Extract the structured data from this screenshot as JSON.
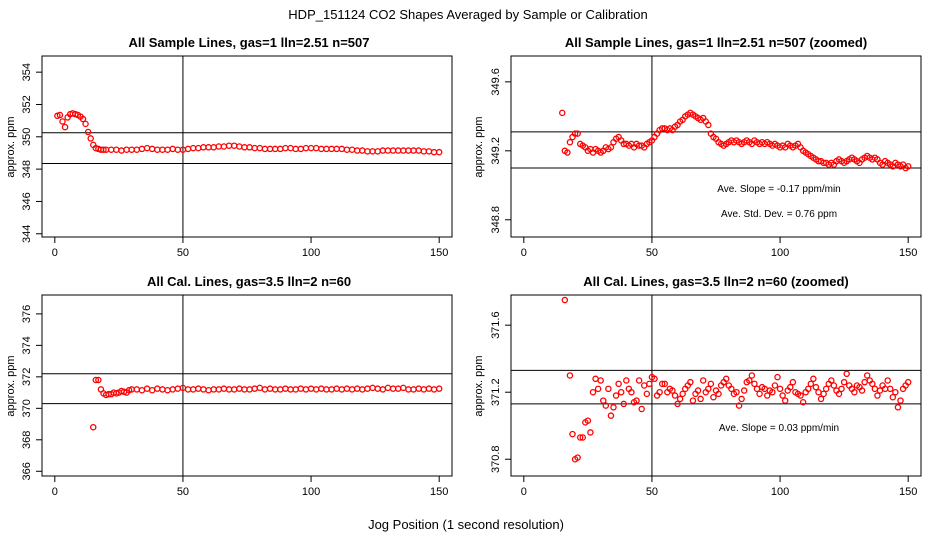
{
  "figure": {
    "title": "HDP_151124  CO2 Shapes Averaged by Sample or Calibration",
    "xlabel": "Jog Position (1 second resolution)"
  },
  "chart_data": [
    {
      "type": "scatter",
      "title": "All Sample Lines, gas=1 lln=2.51 n=507",
      "ylabel": "approx. ppm",
      "xlim": [
        -5,
        155
      ],
      "ylim": [
        343.8,
        355
      ],
      "xticks": [
        "0",
        "50",
        "100",
        "150"
      ],
      "yticks": [
        "344",
        "346",
        "348",
        "350",
        "352",
        "354"
      ],
      "hlines": [
        350.25,
        348.35
      ],
      "vline": 50,
      "annotations": [],
      "series": [
        {
          "name": "sample",
          "color": "#ff0000",
          "x": [
            1,
            2,
            3,
            4,
            5,
            6,
            7,
            8,
            9,
            10,
            11,
            12,
            13,
            14,
            15,
            16,
            17,
            18,
            19,
            20,
            22,
            24,
            26,
            28,
            30,
            32,
            34,
            36,
            38,
            40,
            42,
            44,
            46,
            48,
            50,
            52,
            54,
            56,
            58,
            60,
            62,
            64,
            66,
            68,
            70,
            72,
            74,
            76,
            78,
            80,
            82,
            84,
            86,
            88,
            90,
            92,
            94,
            96,
            98,
            100,
            102,
            104,
            106,
            108,
            110,
            112,
            114,
            116,
            118,
            120,
            122,
            124,
            126,
            128,
            130,
            132,
            134,
            136,
            138,
            140,
            142,
            144,
            146,
            148,
            150
          ],
          "y": [
            351.3,
            351.35,
            350.95,
            350.6,
            351.2,
            351.4,
            351.45,
            351.4,
            351.35,
            351.25,
            351.1,
            350.8,
            350.3,
            349.9,
            349.5,
            349.3,
            349.25,
            349.2,
            349.2,
            349.2,
            349.2,
            349.2,
            349.15,
            349.2,
            349.2,
            349.2,
            349.25,
            349.3,
            349.25,
            349.2,
            349.2,
            349.2,
            349.25,
            349.2,
            349.2,
            349.25,
            349.3,
            349.3,
            349.35,
            349.35,
            349.35,
            349.4,
            349.4,
            349.45,
            349.45,
            349.4,
            349.35,
            349.35,
            349.3,
            349.3,
            349.25,
            349.25,
            349.25,
            349.25,
            349.3,
            349.3,
            349.25,
            349.25,
            349.3,
            349.3,
            349.3,
            349.25,
            349.25,
            349.25,
            349.25,
            349.25,
            349.2,
            349.2,
            349.15,
            349.15,
            349.1,
            349.1,
            349.1,
            349.15,
            349.15,
            349.15,
            349.15,
            349.15,
            349.15,
            349.15,
            349.15,
            349.1,
            349.1,
            349.05,
            349.05
          ]
        }
      ]
    },
    {
      "type": "scatter",
      "title": "All Sample Lines, gas=1 lln=2.51 n=507 (zoomed)",
      "ylabel": "approx. ppm",
      "xlim": [
        -5,
        155
      ],
      "ylim": [
        348.7,
        349.75
      ],
      "xticks": [
        "0",
        "50",
        "100",
        "150"
      ],
      "yticks": [
        "348.8",
        "349.2",
        "349.6"
      ],
      "hlines": [
        349.31,
        349.1
      ],
      "vline": 50,
      "annotations": [
        "Ave. Slope =  -0.17  ppm/min",
        "Ave. Std. Dev. =  0.76  ppm"
      ],
      "series": [
        {
          "name": "sample-zoomed",
          "color": "#ff0000",
          "x": [
            15,
            16,
            17,
            18,
            19,
            20,
            21,
            22,
            23,
            24,
            25,
            26,
            27,
            28,
            29,
            30,
            31,
            32,
            33,
            34,
            35,
            36,
            37,
            38,
            39,
            40,
            41,
            42,
            43,
            44,
            45,
            46,
            47,
            48,
            49,
            50,
            51,
            52,
            53,
            54,
            55,
            56,
            57,
            58,
            59,
            60,
            61,
            62,
            63,
            64,
            65,
            66,
            67,
            68,
            69,
            70,
            71,
            72,
            73,
            74,
            75,
            76,
            77,
            78,
            79,
            80,
            81,
            82,
            83,
            84,
            85,
            86,
            87,
            88,
            89,
            90,
            91,
            92,
            93,
            94,
            95,
            96,
            97,
            98,
            99,
            100,
            101,
            102,
            103,
            104,
            105,
            106,
            107,
            108,
            109,
            110,
            111,
            112,
            113,
            114,
            115,
            116,
            117,
            118,
            119,
            120,
            121,
            122,
            123,
            124,
            125,
            126,
            127,
            128,
            129,
            130,
            131,
            132,
            133,
            134,
            135,
            136,
            137,
            138,
            139,
            140,
            141,
            142,
            143,
            144,
            145,
            146,
            147,
            148,
            149,
            150
          ],
          "y": [
            349.42,
            349.2,
            349.19,
            349.25,
            349.28,
            349.3,
            349.3,
            349.24,
            349.23,
            349.22,
            349.2,
            349.21,
            349.19,
            349.21,
            349.2,
            349.19,
            349.2,
            349.22,
            349.21,
            349.22,
            349.25,
            349.27,
            349.28,
            349.26,
            349.24,
            349.24,
            349.23,
            349.24,
            349.22,
            349.24,
            349.23,
            349.23,
            349.22,
            349.24,
            349.25,
            349.26,
            349.28,
            349.3,
            349.32,
            349.33,
            349.33,
            349.32,
            349.33,
            349.32,
            349.34,
            349.35,
            349.37,
            349.38,
            349.4,
            349.41,
            349.42,
            349.41,
            349.4,
            349.39,
            349.38,
            349.39,
            349.37,
            349.35,
            349.3,
            349.28,
            349.27,
            349.25,
            349.24,
            349.23,
            349.24,
            349.25,
            349.26,
            349.25,
            349.26,
            349.25,
            349.24,
            349.25,
            349.26,
            349.25,
            349.24,
            349.26,
            349.25,
            349.24,
            349.25,
            349.24,
            349.25,
            349.24,
            349.23,
            349.24,
            349.23,
            349.22,
            349.23,
            349.22,
            349.24,
            349.23,
            349.22,
            349.23,
            349.24,
            349.22,
            349.2,
            349.19,
            349.18,
            349.17,
            349.16,
            349.15,
            349.14,
            349.14,
            349.13,
            349.13,
            349.12,
            349.13,
            349.12,
            349.14,
            349.15,
            349.14,
            349.13,
            349.14,
            349.15,
            349.16,
            349.15,
            349.14,
            349.13,
            349.15,
            349.16,
            349.17,
            349.16,
            349.15,
            349.16,
            349.15,
            349.13,
            349.12,
            349.14,
            349.13,
            349.12,
            349.11,
            349.13,
            349.12,
            349.11,
            349.12,
            349.1,
            349.11
          ]
        }
      ]
    },
    {
      "type": "scatter",
      "title": "All Cal. Lines, gas=3.5 lln=2 n=60",
      "ylabel": "approx. ppm",
      "xlim": [
        -5,
        155
      ],
      "ylim": [
        365.7,
        377.2
      ],
      "xticks": [
        "0",
        "50",
        "100",
        "150"
      ],
      "yticks": [
        "366",
        "368",
        "370",
        "372",
        "374",
        "376"
      ],
      "hlines": [
        372.2,
        370.3
      ],
      "vline": 50,
      "annotations": [],
      "series": [
        {
          "name": "calibration",
          "color": "#ff0000",
          "x": [
            15,
            16,
            17,
            18,
            19,
            20,
            21,
            22,
            23,
            24,
            25,
            26,
            27,
            28,
            29,
            30,
            32,
            34,
            36,
            38,
            40,
            42,
            44,
            46,
            48,
            50,
            52,
            54,
            56,
            58,
            60,
            62,
            64,
            66,
            68,
            70,
            72,
            74,
            76,
            78,
            80,
            82,
            84,
            86,
            88,
            90,
            92,
            94,
            96,
            98,
            100,
            102,
            104,
            106,
            108,
            110,
            112,
            114,
            116,
            118,
            120,
            122,
            124,
            126,
            128,
            130,
            132,
            134,
            136,
            138,
            140,
            142,
            144,
            146,
            148,
            150
          ],
          "y": [
            368.8,
            371.8,
            371.8,
            371.2,
            370.95,
            370.85,
            370.9,
            370.9,
            371.0,
            370.95,
            371.0,
            371.1,
            371.05,
            371.0,
            371.15,
            371.2,
            371.2,
            371.15,
            371.25,
            371.15,
            371.25,
            371.2,
            371.15,
            371.2,
            371.25,
            371.3,
            371.2,
            371.2,
            371.25,
            371.2,
            371.15,
            371.2,
            371.2,
            371.25,
            371.2,
            371.2,
            371.25,
            371.2,
            371.2,
            371.25,
            371.3,
            371.2,
            371.25,
            371.2,
            371.2,
            371.25,
            371.2,
            371.2,
            371.25,
            371.2,
            371.25,
            371.2,
            371.25,
            371.2,
            371.2,
            371.25,
            371.2,
            371.25,
            371.2,
            371.25,
            371.2,
            371.25,
            371.3,
            371.25,
            371.2,
            371.3,
            371.25,
            371.25,
            371.3,
            371.2,
            371.2,
            371.25,
            371.2,
            371.25,
            371.2,
            371.25
          ]
        }
      ]
    },
    {
      "type": "scatter",
      "title": "All Cal. Lines, gas=3.5 lln=2 n=60 (zoomed)",
      "ylabel": "approx. ppm",
      "xlim": [
        -5,
        155
      ],
      "ylim": [
        370.7,
        371.78
      ],
      "xticks": [
        "0",
        "50",
        "100",
        "150"
      ],
      "yticks": [
        "370.8",
        "371.2",
        "371.6"
      ],
      "hlines": [
        371.33,
        371.13
      ],
      "vline": 50,
      "annotations": [
        "Ave. Slope =  0.03  ppm/min"
      ],
      "series": [
        {
          "name": "calibration-zoomed",
          "color": "#ff0000",
          "x": [
            16,
            18,
            19,
            20,
            21,
            22,
            23,
            24,
            25,
            26,
            27,
            28,
            29,
            30,
            31,
            32,
            33,
            34,
            35,
            36,
            37,
            38,
            39,
            40,
            41,
            42,
            43,
            44,
            45,
            46,
            47,
            48,
            49,
            50,
            51,
            52,
            53,
            54,
            55,
            56,
            57,
            58,
            59,
            60,
            61,
            62,
            63,
            64,
            65,
            66,
            67,
            68,
            69,
            70,
            71,
            72,
            73,
            74,
            75,
            76,
            77,
            78,
            79,
            80,
            81,
            82,
            83,
            84,
            85,
            86,
            87,
            88,
            89,
            90,
            91,
            92,
            93,
            94,
            95,
            96,
            97,
            98,
            99,
            100,
            101,
            102,
            103,
            104,
            105,
            106,
            107,
            108,
            109,
            110,
            111,
            112,
            113,
            114,
            115,
            116,
            117,
            118,
            119,
            120,
            121,
            122,
            123,
            124,
            125,
            126,
            127,
            128,
            129,
            130,
            131,
            132,
            133,
            134,
            135,
            136,
            137,
            138,
            139,
            140,
            141,
            142,
            143,
            144,
            145,
            146,
            147,
            148,
            149,
            150
          ],
          "y": [
            371.75,
            371.3,
            370.95,
            370.8,
            370.81,
            370.93,
            370.93,
            371.02,
            371.03,
            370.96,
            371.2,
            371.28,
            371.22,
            371.27,
            371.15,
            371.12,
            371.22,
            371.06,
            371.11,
            371.18,
            371.25,
            371.2,
            371.13,
            371.27,
            371.22,
            371.2,
            371.14,
            371.15,
            371.27,
            371.1,
            371.24,
            371.19,
            371.25,
            371.29,
            371.28,
            371.18,
            371.2,
            371.25,
            371.25,
            371.2,
            371.22,
            371.21,
            371.18,
            371.13,
            371.16,
            371.19,
            371.22,
            371.24,
            371.26,
            371.15,
            371.19,
            371.21,
            371.16,
            371.27,
            371.2,
            371.22,
            371.25,
            371.17,
            371.21,
            371.19,
            371.24,
            371.26,
            371.28,
            371.24,
            371.22,
            371.19,
            371.2,
            371.12,
            371.16,
            371.21,
            371.26,
            371.27,
            371.3,
            371.25,
            371.22,
            371.19,
            371.23,
            371.22,
            371.18,
            371.21,
            371.2,
            371.24,
            371.29,
            371.22,
            371.18,
            371.15,
            371.21,
            371.23,
            371.26,
            371.2,
            371.19,
            371.18,
            371.14,
            371.2,
            371.22,
            371.25,
            371.28,
            371.23,
            371.2,
            371.16,
            371.19,
            371.22,
            371.25,
            371.27,
            371.24,
            371.21,
            371.19,
            371.22,
            371.26,
            371.31,
            371.24,
            371.22,
            371.2,
            371.24,
            371.23,
            371.21,
            371.26,
            371.3,
            371.27,
            371.25,
            371.22,
            371.18,
            371.21,
            371.24,
            371.22,
            371.27,
            371.22,
            371.17,
            371.2,
            371.11,
            371.15,
            371.22,
            371.24,
            371.26
          ]
        }
      ]
    }
  ]
}
